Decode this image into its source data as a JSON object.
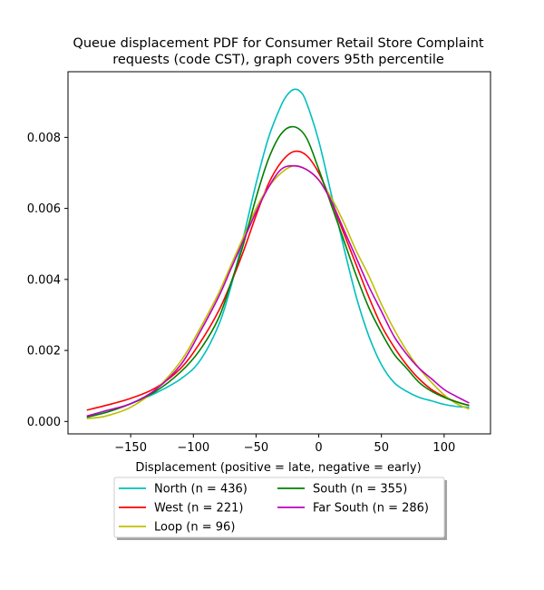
{
  "chart_data": {
    "type": "line",
    "title": [
      "Queue displacement PDF for Consumer Retail Store Complaint",
      "requests (code CST), graph covers 95th percentile"
    ],
    "xlabel": "Displacement (positive = late, negative = early)",
    "ylabel": "",
    "xlim": [
      -200,
      137
    ],
    "ylim": [
      -0.00035,
      0.00985
    ],
    "x_ticks": [
      -150,
      -100,
      -50,
      0,
      50,
      100
    ],
    "x_tick_labels": [
      "−150",
      "−100",
      "−50",
      "0",
      "50",
      "100"
    ],
    "y_ticks": [
      0,
      0.002,
      0.004,
      0.006,
      0.008
    ],
    "y_tick_labels": [
      "0.000",
      "0.002",
      "0.004",
      "0.006",
      "0.008"
    ],
    "grid": false,
    "legend_placement": "below",
    "series": [
      {
        "name": "North (n = 436)",
        "color": "#00bfbf",
        "x": [
          -185,
          -170,
          -150,
          -130,
          -110,
          -95,
          -80,
          -70,
          -60,
          -50,
          -40,
          -30,
          -25,
          -20,
          -15,
          -10,
          0,
          10,
          20,
          30,
          40,
          50,
          60,
          70,
          80,
          90,
          100,
          110,
          120
        ],
        "y": [
          0.00015,
          0.00025,
          0.0005,
          0.0008,
          0.0012,
          0.0017,
          0.0027,
          0.0038,
          0.0052,
          0.0067,
          0.008,
          0.0089,
          0.0092,
          0.00935,
          0.0093,
          0.009,
          0.0079,
          0.0064,
          0.0049,
          0.0035,
          0.0024,
          0.0016,
          0.0011,
          0.00085,
          0.00068,
          0.00058,
          0.00048,
          0.00042,
          0.0004
        ]
      },
      {
        "name": "West (n = 221)",
        "color": "#ff0000",
        "x": [
          -185,
          -170,
          -150,
          -130,
          -110,
          -95,
          -80,
          -70,
          -60,
          -50,
          -40,
          -30,
          -20,
          -10,
          0,
          10,
          20,
          30,
          40,
          50,
          60,
          70,
          80,
          90,
          100,
          110,
          120
        ],
        "y": [
          0.00032,
          0.00045,
          0.00065,
          0.00095,
          0.0015,
          0.0022,
          0.0031,
          0.0039,
          0.0048,
          0.0058,
          0.0067,
          0.0073,
          0.0076,
          0.0075,
          0.007,
          0.0062,
          0.0053,
          0.0044,
          0.0035,
          0.0027,
          0.0021,
          0.0016,
          0.0012,
          0.0009,
          0.0007,
          0.00055,
          0.00045
        ]
      },
      {
        "name": "Loop (n = 96)",
        "color": "#bfbf00",
        "x": [
          -185,
          -170,
          -150,
          -130,
          -110,
          -95,
          -80,
          -70,
          -60,
          -50,
          -40,
          -30,
          -20,
          -10,
          0,
          10,
          20,
          30,
          40,
          50,
          60,
          70,
          80,
          90,
          100,
          110,
          120
        ],
        "y": [
          8e-05,
          0.00015,
          0.0004,
          0.0009,
          0.0017,
          0.0026,
          0.0036,
          0.0044,
          0.0052,
          0.006,
          0.0066,
          0.007,
          0.0072,
          0.0071,
          0.0068,
          0.0063,
          0.0056,
          0.0048,
          0.0041,
          0.0033,
          0.0026,
          0.002,
          0.0015,
          0.0011,
          0.00075,
          0.0005,
          0.00035
        ]
      },
      {
        "name": "South (n = 355)",
        "color": "#008000",
        "x": [
          -185,
          -170,
          -150,
          -130,
          -110,
          -95,
          -80,
          -70,
          -60,
          -50,
          -40,
          -30,
          -20,
          -10,
          0,
          10,
          20,
          30,
          40,
          50,
          60,
          70,
          80,
          90,
          100,
          110,
          120
        ],
        "y": [
          0.00012,
          0.00025,
          0.0005,
          0.00085,
          0.0014,
          0.002,
          0.0029,
          0.0039,
          0.005,
          0.0063,
          0.0074,
          0.0081,
          0.0083,
          0.008,
          0.0071,
          0.0061,
          0.0051,
          0.0041,
          0.0032,
          0.0025,
          0.0019,
          0.0015,
          0.0011,
          0.00085,
          0.00068,
          0.00055,
          0.00045
        ]
      },
      {
        "name": "Far South (n = 286)",
        "color": "#bf00bf",
        "x": [
          -185,
          -170,
          -150,
          -130,
          -110,
          -95,
          -80,
          -70,
          -60,
          -50,
          -40,
          -30,
          -20,
          -10,
          0,
          10,
          20,
          30,
          40,
          50,
          60,
          70,
          80,
          90,
          100,
          110,
          120
        ],
        "y": [
          0.00015,
          0.0003,
          0.0005,
          0.0009,
          0.0016,
          0.0025,
          0.0035,
          0.0043,
          0.0051,
          0.0059,
          0.0066,
          0.0071,
          0.0072,
          0.0071,
          0.0068,
          0.0062,
          0.0054,
          0.0046,
          0.0038,
          0.0031,
          0.0024,
          0.0019,
          0.0015,
          0.0012,
          0.0009,
          0.0007,
          0.00052
        ]
      }
    ]
  }
}
